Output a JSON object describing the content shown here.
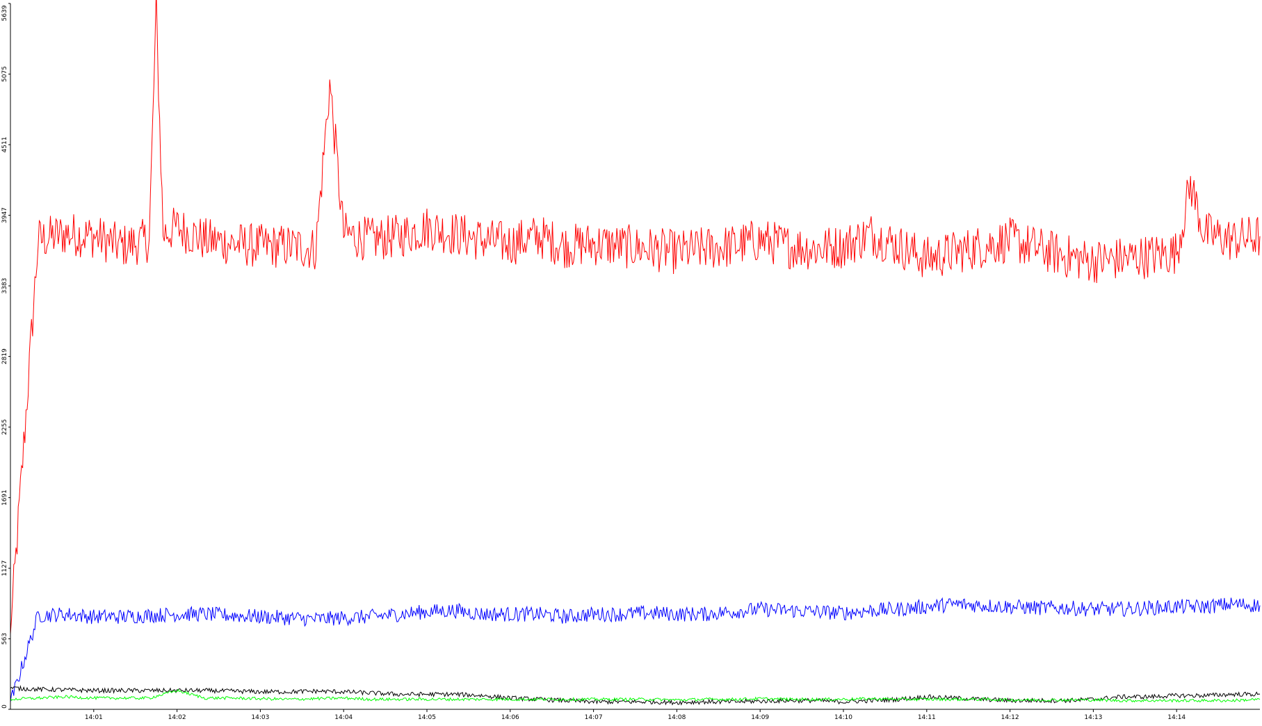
{
  "chart_data": {
    "type": "line",
    "title": "",
    "xlabel": "",
    "ylabel": "",
    "x_range": [
      "14:00:00",
      "14:15:00"
    ],
    "x_ticks": [
      "14:01",
      "14:02",
      "14:03",
      "14:04",
      "14:05",
      "14:06",
      "14:07",
      "14:08",
      "14:09",
      "14:10",
      "14:11",
      "14:12",
      "14:13",
      "14:14"
    ],
    "ylim": [
      0,
      5639
    ],
    "y_ticks": [
      "0",
      "563",
      "1127",
      "1691",
      "2255",
      "2819",
      "3383",
      "3947",
      "4511",
      "5075",
      "5639"
    ],
    "grid": false,
    "legend": "none",
    "series": [
      {
        "color": "#ff0000",
        "x": [
          "14:00:00",
          "14:00:20",
          "14:00:40",
          "14:01:00",
          "14:01:20",
          "14:01:40",
          "14:01:45",
          "14:01:50",
          "14:02:00",
          "14:02:20",
          "14:02:40",
          "14:03:00",
          "14:03:20",
          "14:03:40",
          "14:03:50",
          "14:04:00",
          "14:04:20",
          "14:04:40",
          "14:05:00",
          "14:05:20",
          "14:05:40",
          "14:06:00",
          "14:06:20",
          "14:06:40",
          "14:07:00",
          "14:07:20",
          "14:07:40",
          "14:08:00",
          "14:08:20",
          "14:08:40",
          "14:09:00",
          "14:09:20",
          "14:09:40",
          "14:10:00",
          "14:10:20",
          "14:10:40",
          "14:11:00",
          "14:11:20",
          "14:11:40",
          "14:12:00",
          "14:12:20",
          "14:12:40",
          "14:13:00",
          "14:13:20",
          "14:13:40",
          "14:14:00",
          "14:14:10",
          "14:14:20",
          "14:14:40",
          "14:15:00"
        ],
        "values": [
          600,
          3750,
          3800,
          3780,
          3700,
          3750,
          5600,
          3800,
          3850,
          3750,
          3720,
          3700,
          3700,
          3680,
          5000,
          3800,
          3750,
          3780,
          3850,
          3800,
          3750,
          3720,
          3780,
          3700,
          3720,
          3700,
          3680,
          3650,
          3680,
          3700,
          3750,
          3700,
          3680,
          3700,
          3800,
          3700,
          3600,
          3650,
          3700,
          3750,
          3680,
          3620,
          3580,
          3600,
          3620,
          3650,
          4200,
          3800,
          3750,
          3780
        ]
      },
      {
        "color": "#0000ff",
        "x": [
          "14:00:00",
          "14:00:20",
          "14:00:40",
          "14:01:00",
          "14:01:20",
          "14:01:40",
          "14:02:00",
          "14:02:20",
          "14:02:40",
          "14:03:00",
          "14:03:20",
          "14:03:40",
          "14:04:00",
          "14:04:20",
          "14:04:40",
          "14:05:00",
          "14:05:20",
          "14:05:40",
          "14:06:00",
          "14:06:20",
          "14:06:40",
          "14:07:00",
          "14:07:20",
          "14:07:40",
          "14:08:00",
          "14:08:20",
          "14:08:40",
          "14:09:00",
          "14:09:20",
          "14:09:40",
          "14:10:00",
          "14:10:20",
          "14:10:40",
          "14:11:00",
          "14:11:20",
          "14:11:40",
          "14:12:00",
          "14:12:20",
          "14:12:40",
          "14:13:00",
          "14:13:20",
          "14:13:40",
          "14:14:00",
          "14:14:20",
          "14:14:40",
          "14:15:00"
        ],
        "values": [
          50,
          750,
          760,
          740,
          740,
          750,
          760,
          760,
          750,
          740,
          730,
          720,
          730,
          740,
          760,
          780,
          790,
          760,
          760,
          760,
          740,
          760,
          760,
          770,
          760,
          760,
          780,
          800,
          790,
          780,
          770,
          790,
          800,
          820,
          840,
          830,
          820,
          810,
          810,
          800,
          800,
          810,
          820,
          820,
          840,
          830
        ]
      },
      {
        "color": "#000000",
        "x": [
          "14:00:00",
          "14:00:20",
          "14:00:40",
          "14:01:00",
          "14:01:20",
          "14:01:40",
          "14:02:00",
          "14:02:20",
          "14:02:40",
          "14:03:00",
          "14:03:20",
          "14:03:40",
          "14:04:00",
          "14:04:20",
          "14:04:40",
          "14:05:00",
          "14:05:20",
          "14:05:40",
          "14:06:00",
          "14:06:20",
          "14:06:40",
          "14:07:00",
          "14:07:20",
          "14:07:40",
          "14:08:00",
          "14:08:20",
          "14:08:40",
          "14:09:00",
          "14:09:20",
          "14:09:40",
          "14:10:00",
          "14:10:20",
          "14:10:40",
          "14:11:00",
          "14:11:20",
          "14:11:40",
          "14:12:00",
          "14:12:20",
          "14:12:40",
          "14:13:00",
          "14:13:20",
          "14:13:40",
          "14:14:00",
          "14:14:20",
          "14:14:40",
          "14:15:00"
        ],
        "values": [
          170,
          160,
          155,
          150,
          150,
          150,
          150,
          150,
          145,
          140,
          140,
          145,
          140,
          130,
          120,
          120,
          120,
          110,
          90,
          80,
          70,
          60,
          60,
          60,
          55,
          60,
          60,
          65,
          70,
          70,
          60,
          70,
          80,
          100,
          90,
          80,
          70,
          70,
          70,
          80,
          100,
          100,
          110,
          110,
          120,
          120
        ]
      },
      {
        "color": "#00ff00",
        "x": [
          "14:00:00",
          "14:00:20",
          "14:00:40",
          "14:01:00",
          "14:01:20",
          "14:01:40",
          "14:02:00",
          "14:02:20",
          "14:02:40",
          "14:03:00",
          "14:03:20",
          "14:03:40",
          "14:04:00",
          "14:04:20",
          "14:04:40",
          "14:05:00",
          "14:05:20",
          "14:05:40",
          "14:06:00",
          "14:06:20",
          "14:06:40",
          "14:07:00",
          "14:07:20",
          "14:07:40",
          "14:08:00",
          "14:08:20",
          "14:08:40",
          "14:09:00",
          "14:09:20",
          "14:09:40",
          "14:10:00",
          "14:10:20",
          "14:10:40",
          "14:11:00",
          "14:11:20",
          "14:11:40",
          "14:12:00",
          "14:12:20",
          "14:12:40",
          "14:13:00",
          "14:13:20",
          "14:13:40",
          "14:14:00",
          "14:14:20",
          "14:14:40",
          "14:15:00"
        ],
        "values": [
          80,
          90,
          100,
          90,
          90,
          90,
          150,
          90,
          90,
          85,
          80,
          85,
          90,
          80,
          80,
          80,
          80,
          80,
          80,
          80,
          80,
          80,
          80,
          80,
          75,
          80,
          80,
          85,
          80,
          80,
          80,
          85,
          80,
          80,
          80,
          80,
          75,
          75,
          75,
          75,
          70,
          70,
          70,
          70,
          70,
          80
        ]
      }
    ]
  }
}
